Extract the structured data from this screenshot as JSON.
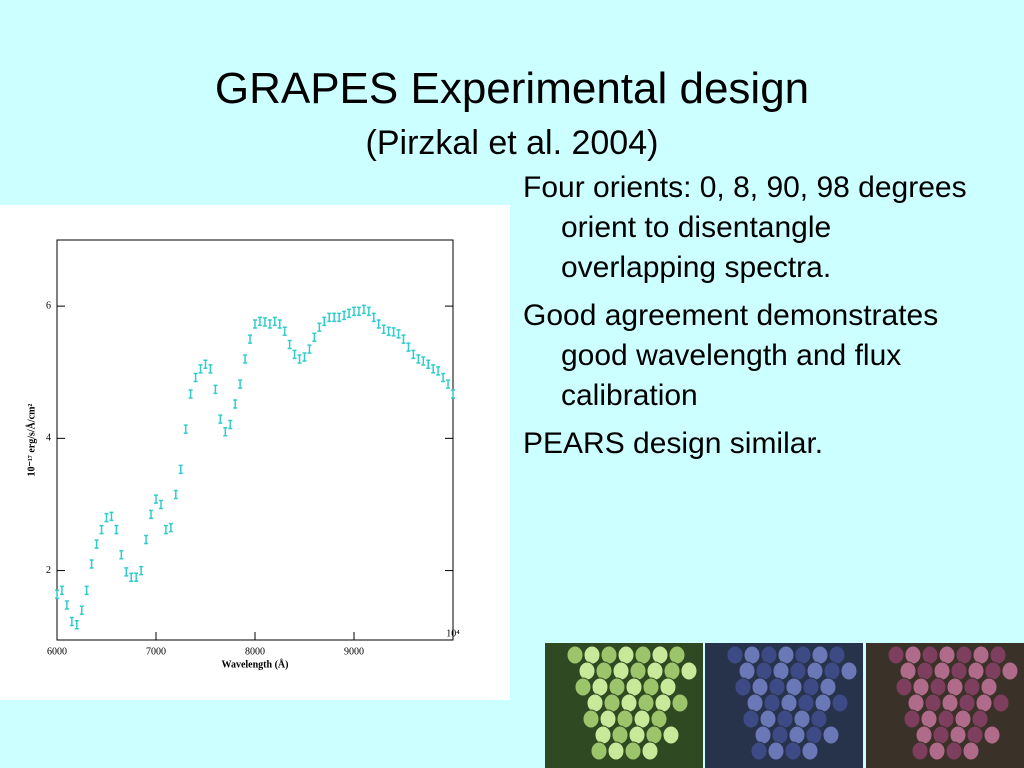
{
  "slide": {
    "title": "GRAPES Experimental design",
    "subtitle": "(Pirzkal et al. 2004)",
    "bullets": [
      "Four orients: 0, 8, 90, 98 degrees orient to disentangle overlapping spectra.",
      "Good agreement demonstrates good wavelength and flux calibration",
      "PEARS design similar."
    ]
  },
  "chart_data": {
    "type": "scatter",
    "xlabel": "Wavelength (Å)",
    "ylabel": "10⁻¹⁷ erg/s/Å/cm²",
    "x": [
      6000,
      6050,
      6100,
      6150,
      6200,
      6250,
      6300,
      6350,
      6400,
      6450,
      6500,
      6550,
      6600,
      6650,
      6700,
      6750,
      6800,
      6850,
      6900,
      6950,
      7000,
      7050,
      7100,
      7150,
      7200,
      7250,
      7300,
      7350,
      7400,
      7450,
      7500,
      7550,
      7600,
      7650,
      7700,
      7750,
      7800,
      7850,
      7900,
      7950,
      8000,
      8050,
      8100,
      8150,
      8200,
      8250,
      8300,
      8350,
      8400,
      8450,
      8500,
      8550,
      8600,
      8650,
      8700,
      8750,
      8800,
      8850,
      8900,
      8950,
      9000,
      9050,
      9100,
      9150,
      9200,
      9250,
      9300,
      9350,
      9400,
      9450,
      9500,
      9550,
      9600,
      9650,
      9700,
      9750,
      9800,
      9850,
      9900,
      9950,
      10000
    ],
    "series": [
      {
        "color": "#33cccc",
        "values": [
          1.64,
          1.7,
          1.48,
          1.23,
          1.18,
          1.4,
          1.7,
          2.1,
          2.4,
          2.62,
          2.8,
          2.82,
          2.62,
          2.24,
          1.98,
          1.9,
          1.9,
          2.0,
          2.47,
          2.85,
          3.08,
          3.0,
          2.62,
          2.65,
          3.15,
          3.53,
          4.14,
          4.67,
          4.92,
          5.05,
          5.12,
          5.05,
          4.74,
          4.29,
          4.1,
          4.21,
          4.52,
          4.82,
          5.2,
          5.5,
          5.73,
          5.77,
          5.76,
          5.73,
          5.77,
          5.73,
          5.62,
          5.42,
          5.27,
          5.2,
          5.23,
          5.35,
          5.53,
          5.68,
          5.77,
          5.83,
          5.83,
          5.83,
          5.86,
          5.89,
          5.92,
          5.92,
          5.95,
          5.92,
          5.83,
          5.73,
          5.65,
          5.62,
          5.61,
          5.58,
          5.5,
          5.38,
          5.27,
          5.2,
          5.17,
          5.12,
          5.05,
          5.02,
          4.92,
          4.82,
          4.67
        ]
      }
    ],
    "xlim": [
      6000,
      10000
    ],
    "ylim": [
      0.95,
      7.0
    ],
    "xticks": [
      6000,
      7000,
      8000,
      9000,
      {
        "value": 10000,
        "label": "10⁴"
      }
    ],
    "yticks": [
      2,
      4,
      6
    ]
  }
}
